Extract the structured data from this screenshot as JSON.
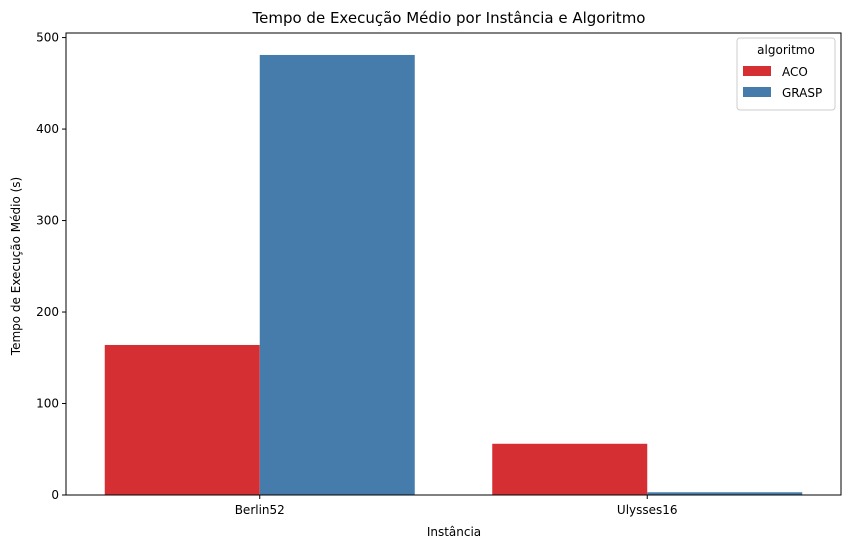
{
  "chart_data": {
    "type": "bar",
    "title": "Tempo de Execução Médio por Instância e Algoritmo",
    "xlabel": "Instância",
    "ylabel": "Tempo de Execução Médio (s)",
    "categories": [
      "Berlin52",
      "Ulysses16"
    ],
    "series": [
      {
        "name": "ACO",
        "values": [
          164,
          56
        ],
        "color": "#d62f33"
      },
      {
        "name": "GRASP",
        "values": [
          481,
          3
        ],
        "color": "#467cac"
      }
    ],
    "ylim": [
      0,
      505
    ],
    "yticks": [
      0,
      100,
      200,
      300,
      400,
      500
    ],
    "grid": false,
    "legend": {
      "title": "algoritmo",
      "placement": "top-right"
    }
  }
}
